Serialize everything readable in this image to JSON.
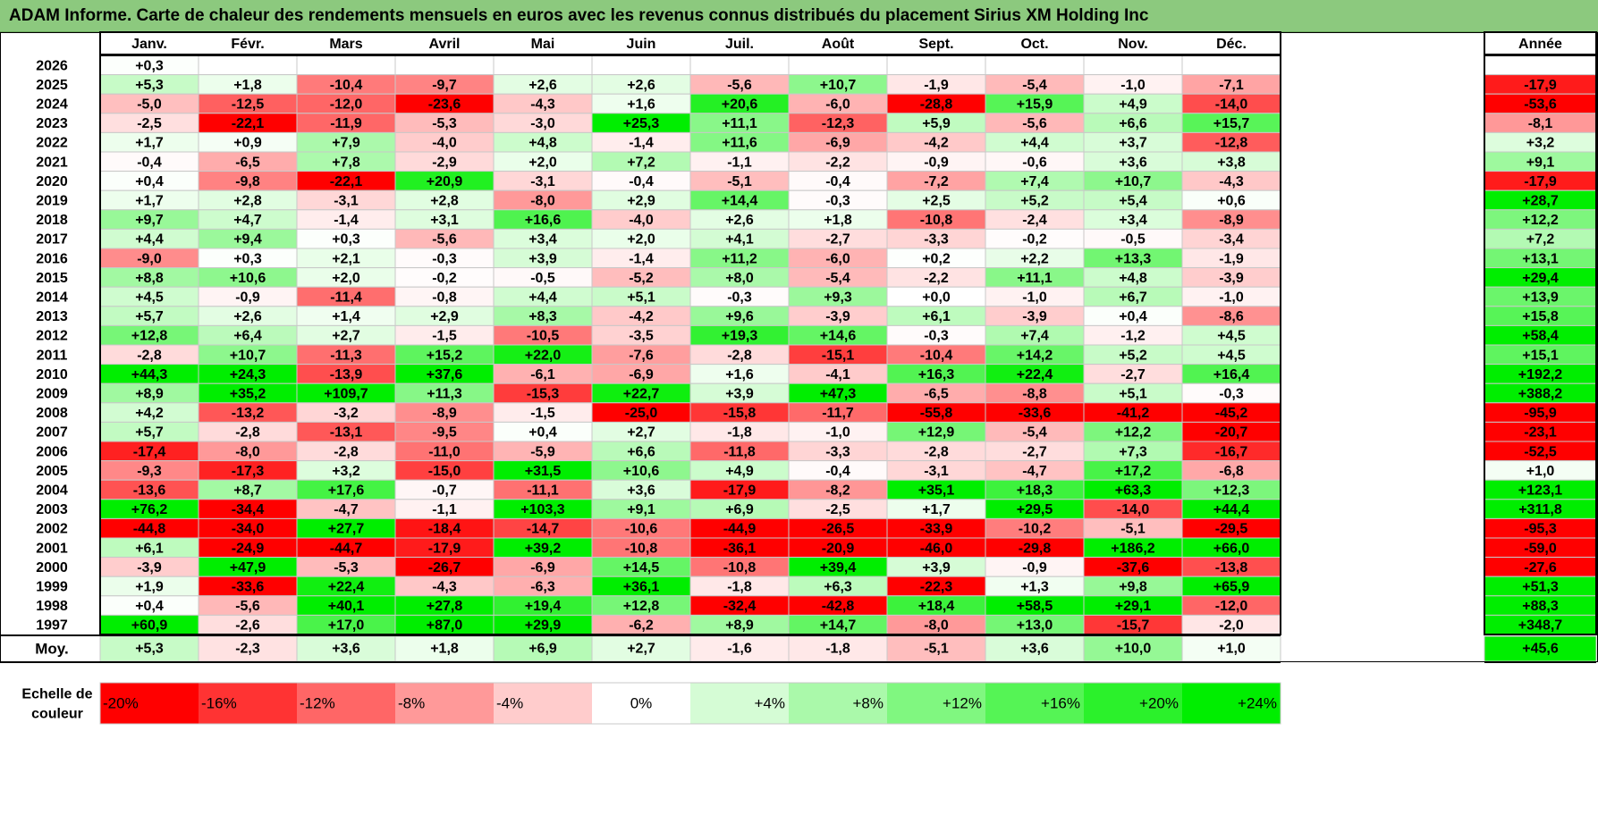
{
  "title": "ADAM Informe. Carte de chaleur des rendements mensuels en euros avec les revenus connus distribués du placement Sirius XM Holding Inc",
  "chart_data": {
    "type": "heatmap",
    "columns": [
      "Janv.",
      "Févr.",
      "Mars",
      "Avril",
      "Mai",
      "Juin",
      "Juil.",
      "Août",
      "Sept.",
      "Oct.",
      "Nov.",
      "Déc."
    ],
    "year_column_label": "Année",
    "rows": [
      {
        "year": "2026",
        "months": [
          "+0,3",
          "",
          "",
          "",
          "",
          "",
          "",
          "",
          "",
          "",
          "",
          ""
        ],
        "annual": ""
      },
      {
        "year": "2025",
        "months": [
          "+5,3",
          "+1,8",
          "-10,4",
          "-9,7",
          "+2,6",
          "+2,6",
          "-5,6",
          "+10,7",
          "-1,9",
          "-5,4",
          "-1,0",
          "-7,1"
        ],
        "annual": "-17,9"
      },
      {
        "year": "2024",
        "months": [
          "-5,0",
          "-12,5",
          "-12,0",
          "-23,6",
          "-4,3",
          "+1,6",
          "+20,6",
          "-6,0",
          "-28,8",
          "+15,9",
          "+4,9",
          "-14,0"
        ],
        "annual": "-53,6"
      },
      {
        "year": "2023",
        "months": [
          "-2,5",
          "-22,1",
          "-11,9",
          "-5,3",
          "-3,0",
          "+25,3",
          "+11,1",
          "-12,3",
          "+5,9",
          "-5,6",
          "+6,6",
          "+15,7"
        ],
        "annual": "-8,1"
      },
      {
        "year": "2022",
        "months": [
          "+1,7",
          "+0,9",
          "+7,9",
          "-4,0",
          "+4,8",
          "-1,4",
          "+11,6",
          "-6,9",
          "-4,2",
          "+4,4",
          "+3,7",
          "-12,8"
        ],
        "annual": "+3,2"
      },
      {
        "year": "2021",
        "months": [
          "-0,4",
          "-6,5",
          "+7,8",
          "-2,9",
          "+2,0",
          "+7,2",
          "-1,1",
          "-2,2",
          "-0,9",
          "-0,6",
          "+3,6",
          "+3,8"
        ],
        "annual": "+9,1"
      },
      {
        "year": "2020",
        "months": [
          "+0,4",
          "-9,8",
          "-22,1",
          "+20,9",
          "-3,1",
          "-0,4",
          "-5,1",
          "-0,4",
          "-7,2",
          "+7,4",
          "+10,7",
          "-4,3"
        ],
        "annual": "-17,9"
      },
      {
        "year": "2019",
        "months": [
          "+1,7",
          "+2,8",
          "-3,1",
          "+2,8",
          "-8,0",
          "+2,9",
          "+14,4",
          "-0,3",
          "+2,5",
          "+5,2",
          "+5,4",
          "+0,6"
        ],
        "annual": "+28,7"
      },
      {
        "year": "2018",
        "months": [
          "+9,7",
          "+4,7",
          "-1,4",
          "+3,1",
          "+16,6",
          "-4,0",
          "+2,6",
          "+1,8",
          "-10,8",
          "-2,4",
          "+3,4",
          "-8,9"
        ],
        "annual": "+12,2"
      },
      {
        "year": "2017",
        "months": [
          "+4,4",
          "+9,4",
          "+0,3",
          "-5,6",
          "+3,4",
          "+2,0",
          "+4,1",
          "-2,7",
          "-3,3",
          "-0,2",
          "-0,5",
          "-3,4"
        ],
        "annual": "+7,2"
      },
      {
        "year": "2016",
        "months": [
          "-9,0",
          "+0,3",
          "+2,1",
          "-0,3",
          "+3,9",
          "-1,4",
          "+11,2",
          "-6,0",
          "+0,2",
          "+2,2",
          "+13,3",
          "-1,9"
        ],
        "annual": "+13,1"
      },
      {
        "year": "2015",
        "months": [
          "+8,8",
          "+10,6",
          "+2,0",
          "-0,2",
          "-0,5",
          "-5,2",
          "+8,0",
          "-5,4",
          "-2,2",
          "+11,1",
          "+4,8",
          "-3,9"
        ],
        "annual": "+29,4"
      },
      {
        "year": "2014",
        "months": [
          "+4,5",
          "-0,9",
          "-11,4",
          "-0,8",
          "+4,4",
          "+5,1",
          "-0,3",
          "+9,3",
          "+0,0",
          "-1,0",
          "+6,7",
          "-1,0"
        ],
        "annual": "+13,9"
      },
      {
        "year": "2013",
        "months": [
          "+5,7",
          "+2,6",
          "+1,4",
          "+2,9",
          "+8,3",
          "-4,2",
          "+9,6",
          "-3,9",
          "+6,1",
          "-3,9",
          "+0,4",
          "-8,6"
        ],
        "annual": "+15,8"
      },
      {
        "year": "2012",
        "months": [
          "+12,8",
          "+6,4",
          "+2,7",
          "-1,5",
          "-10,5",
          "-3,5",
          "+19,3",
          "+14,6",
          "-0,3",
          "+7,4",
          "-1,2",
          "+4,5"
        ],
        "annual": "+58,4"
      },
      {
        "year": "2011",
        "months": [
          "-2,8",
          "+10,7",
          "-11,3",
          "+15,2",
          "+22,0",
          "-7,6",
          "-2,8",
          "-15,1",
          "-10,4",
          "+14,2",
          "+5,2",
          "+4,5"
        ],
        "annual": "+15,1"
      },
      {
        "year": "2010",
        "months": [
          "+44,3",
          "+24,3",
          "-13,9",
          "+37,6",
          "-6,1",
          "-6,9",
          "+1,6",
          "-4,1",
          "+16,3",
          "+22,4",
          "-2,7",
          "+16,4"
        ],
        "annual": "+192,2"
      },
      {
        "year": "2009",
        "months": [
          "+8,9",
          "+35,2",
          "+109,7",
          "+11,3",
          "-15,3",
          "+22,7",
          "+3,9",
          "+47,3",
          "-6,5",
          "-8,8",
          "+5,1",
          "-0,3"
        ],
        "annual": "+388,2"
      },
      {
        "year": "2008",
        "months": [
          "+4,2",
          "-13,2",
          "-3,2",
          "-8,9",
          "-1,5",
          "-25,0",
          "-15,8",
          "-11,7",
          "-55,8",
          "-33,6",
          "-41,2",
          "-45,2"
        ],
        "annual": "-95,9"
      },
      {
        "year": "2007",
        "months": [
          "+5,7",
          "-2,8",
          "-13,1",
          "-9,5",
          "+0,4",
          "+2,7",
          "-1,8",
          "-1,0",
          "+12,9",
          "-5,4",
          "+12,2",
          "-20,7"
        ],
        "annual": "-23,1"
      },
      {
        "year": "2006",
        "months": [
          "-17,4",
          "-8,0",
          "-2,8",
          "-11,0",
          "-5,9",
          "+6,6",
          "-11,8",
          "-3,3",
          "-2,8",
          "-2,7",
          "+7,3",
          "-16,7"
        ],
        "annual": "-52,5"
      },
      {
        "year": "2005",
        "months": [
          "-9,3",
          "-17,3",
          "+3,2",
          "-15,0",
          "+31,5",
          "+10,6",
          "+4,9",
          "-0,4",
          "-3,1",
          "-4,7",
          "+17,2",
          "-6,8"
        ],
        "annual": "+1,0"
      },
      {
        "year": "2004",
        "months": [
          "-13,6",
          "+8,7",
          "+17,6",
          "-0,7",
          "-11,1",
          "+3,6",
          "-17,9",
          "-8,2",
          "+35,1",
          "+18,3",
          "+63,3",
          "+12,3"
        ],
        "annual": "+123,1"
      },
      {
        "year": "2003",
        "months": [
          "+76,2",
          "-34,4",
          "-4,7",
          "-1,1",
          "+103,3",
          "+9,1",
          "+6,9",
          "-2,5",
          "+1,7",
          "+29,5",
          "-14,0",
          "+44,4"
        ],
        "annual": "+311,8"
      },
      {
        "year": "2002",
        "months": [
          "-44,8",
          "-34,0",
          "+27,7",
          "-18,4",
          "-14,7",
          "-10,6",
          "-44,9",
          "-26,5",
          "-33,9",
          "-10,2",
          "-5,1",
          "-29,5"
        ],
        "annual": "-95,3"
      },
      {
        "year": "2001",
        "months": [
          "+6,1",
          "-24,9",
          "-44,7",
          "-17,9",
          "+39,2",
          "-10,8",
          "-36,1",
          "-20,9",
          "-46,0",
          "-29,8",
          "+186,2",
          "+66,0"
        ],
        "annual": "-59,0"
      },
      {
        "year": "2000",
        "months": [
          "-3,9",
          "+47,9",
          "-5,3",
          "-26,7",
          "-6,9",
          "+14,5",
          "-10,8",
          "+39,4",
          "+3,9",
          "-0,9",
          "-37,6",
          "-13,8"
        ],
        "annual": "-27,6"
      },
      {
        "year": "1999",
        "months": [
          "+1,9",
          "-33,6",
          "+22,4",
          "-4,3",
          "-6,3",
          "+36,1",
          "-1,8",
          "+6,3",
          "-22,3",
          "+1,3",
          "+9,8",
          "+65,9"
        ],
        "annual": "+51,3"
      },
      {
        "year": "1998",
        "months": [
          "+0,4",
          "-5,6",
          "+40,1",
          "+27,8",
          "+19,4",
          "+12,8",
          "-32,4",
          "-42,8",
          "+18,4",
          "+58,5",
          "+29,1",
          "-12,0"
        ],
        "annual": "+88,3"
      },
      {
        "year": "1997",
        "months": [
          "+60,9",
          "-2,6",
          "+17,0",
          "+87,0",
          "+29,9",
          "-6,2",
          "+8,9",
          "+14,7",
          "-8,0",
          "+13,0",
          "-15,7",
          "-2,0"
        ],
        "annual": "+348,7"
      }
    ],
    "average_row": {
      "label": "Moy.",
      "months": [
        "+5,3",
        "-2,3",
        "+3,6",
        "+1,8",
        "+6,9",
        "+2,7",
        "-1,6",
        "-1,8",
        "-5,1",
        "+3,6",
        "+10,0",
        "+1,0"
      ],
      "annual": "+45,6"
    },
    "color_scale": {
      "label_line1": "Echelle de",
      "label_line2": "couleur",
      "stops": [
        "-20%",
        "-16%",
        "-12%",
        "-8%",
        "-4%",
        "0%",
        "+4%",
        "+8%",
        "+12%",
        "+16%",
        "+20%",
        "+24%"
      ],
      "stop_values": [
        -20,
        -16,
        -12,
        -8,
        -4,
        0,
        4,
        8,
        12,
        16,
        20,
        24
      ],
      "negative_color": "#ff0000",
      "neutral_color": "#ffffff",
      "positive_color": "#00ee00"
    }
  }
}
